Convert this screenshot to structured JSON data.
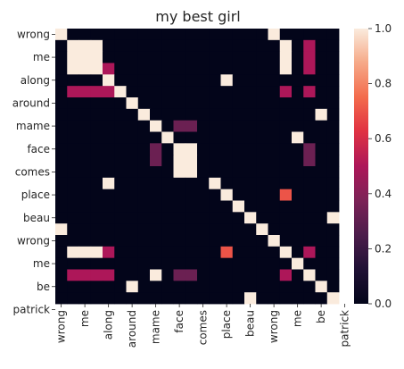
{
  "chart_data": {
    "type": "heatmap",
    "title": "my best girl",
    "xlabel": "",
    "ylabel": "",
    "labels": [
      "wrong",
      "me",
      "along",
      "around",
      "mame",
      "face",
      "comes",
      "place",
      "beau",
      "wrong",
      "me",
      "be",
      "patrick"
    ],
    "cell_labels": [
      "wrong",
      "me",
      "me",
      "me",
      "along",
      "along",
      "along",
      "along",
      "around",
      "mame",
      "mame",
      "face",
      "comes",
      "comes",
      "comes",
      "place",
      "beau",
      "wrong",
      "me",
      "me",
      "be",
      "be",
      "be",
      "patrick"
    ],
    "matrix": [
      [
        1,
        0,
        0,
        0,
        0,
        0,
        0,
        0,
        0,
        0,
        0,
        0,
        0,
        0,
        0,
        0,
        0,
        0,
        1,
        0,
        0,
        0,
        0,
        0
      ],
      [
        0,
        1,
        1,
        1,
        0,
        0,
        0,
        0,
        0,
        0,
        0,
        0,
        0,
        0,
        0,
        0,
        0,
        0,
        0,
        1,
        0,
        0.5,
        0,
        0
      ],
      [
        0,
        1,
        1,
        1,
        0,
        0,
        0,
        0,
        0,
        0,
        0,
        0,
        0,
        0,
        0,
        0,
        0,
        0,
        0,
        1,
        0,
        0.5,
        0,
        0
      ],
      [
        0,
        1,
        1,
        1,
        0.5,
        0,
        0,
        0,
        0,
        0,
        0,
        0,
        0,
        0,
        0,
        0,
        0,
        0,
        0,
        1,
        0,
        0.5,
        0,
        0
      ],
      [
        0,
        0,
        0,
        0,
        1,
        0,
        0,
        0,
        0,
        0,
        0,
        0,
        0,
        0,
        1,
        0,
        0,
        0,
        0,
        0,
        0,
        0,
        0,
        0
      ],
      [
        0,
        0.5,
        0.5,
        0.5,
        0.5,
        1,
        0,
        0,
        0,
        0,
        0,
        0,
        0,
        0,
        0,
        0,
        0,
        0,
        0,
        0.5,
        0,
        0.5,
        0,
        0
      ],
      [
        0,
        0,
        0,
        0,
        0,
        0,
        1,
        0,
        0,
        0,
        0,
        0,
        0,
        0,
        0,
        0,
        0,
        0,
        0,
        0,
        0,
        0,
        0,
        0
      ],
      [
        0,
        0,
        0,
        0,
        0,
        0,
        0,
        1,
        0,
        0,
        0,
        0,
        0,
        0,
        0,
        0,
        0,
        0,
        0,
        0,
        0,
        0,
        1,
        0
      ],
      [
        0,
        0,
        0,
        0,
        0,
        0,
        0,
        0,
        1,
        0,
        0.33,
        0.33,
        0,
        0,
        0,
        0,
        0,
        0,
        0,
        0,
        0,
        0,
        0,
        0
      ],
      [
        0,
        0,
        0,
        0,
        0,
        0,
        0,
        0,
        0,
        1,
        0,
        0,
        0,
        0,
        0,
        0,
        0,
        0,
        0,
        0,
        1,
        0,
        0,
        0
      ],
      [
        0,
        0,
        0,
        0,
        0,
        0,
        0,
        0,
        0.33,
        0,
        1,
        1,
        0,
        0,
        0,
        0,
        0,
        0,
        0,
        0,
        0,
        0.33,
        0,
        0
      ],
      [
        0,
        0,
        0,
        0,
        0,
        0,
        0,
        0,
        0.33,
        0,
        1,
        1,
        0,
        0,
        0,
        0,
        0,
        0,
        0,
        0,
        0,
        0.33,
        0,
        0
      ],
      [
        0,
        0,
        0,
        0,
        0,
        0,
        0,
        0,
        0,
        0,
        1,
        1,
        0,
        0,
        0,
        0,
        0,
        0,
        0,
        0,
        0,
        0,
        0,
        0
      ],
      [
        0,
        0,
        0,
        0,
        1,
        0,
        0,
        0,
        0,
        0,
        0,
        0,
        0,
        1,
        0,
        0,
        0,
        0,
        0,
        0,
        0,
        0,
        0,
        0
      ],
      [
        0,
        0,
        0,
        0,
        0,
        0,
        0,
        0,
        0,
        0,
        0,
        0,
        0,
        0,
        1,
        0,
        0,
        0,
        0,
        0,
        0,
        0,
        0,
        0
      ],
      [
        0,
        0,
        0,
        0,
        0,
        0,
        0,
        0,
        0,
        0,
        0,
        0,
        0,
        0,
        0,
        1,
        0,
        0,
        0,
        0,
        0,
        0,
        0,
        0
      ],
      [
        0,
        0,
        0,
        0,
        0,
        0,
        0,
        0,
        0,
        0,
        0,
        0,
        0,
        0,
        0,
        0,
        1,
        0,
        0,
        0,
        0,
        0,
        0,
        1
      ],
      [
        1,
        0,
        0,
        0,
        0,
        0,
        0,
        0,
        0,
        0,
        0,
        0,
        0,
        0,
        0,
        0,
        0,
        1,
        0,
        0,
        0,
        0,
        0,
        0
      ],
      [
        0,
        0,
        0,
        0,
        0,
        0,
        0,
        0,
        0,
        0,
        0,
        0,
        0,
        0,
        0,
        0,
        0,
        0,
        1,
        0,
        0,
        0,
        0,
        0
      ],
      [
        0,
        1,
        1,
        1,
        0.5,
        0,
        0,
        0,
        0,
        0,
        0,
        0,
        0,
        0,
        0,
        0,
        0,
        0,
        0,
        1,
        0,
        0.5,
        0,
        0
      ],
      [
        0,
        0,
        0,
        0,
        0,
        0,
        0,
        0,
        0,
        0,
        0,
        0,
        0,
        0,
        0,
        0,
        0,
        0,
        0,
        0,
        1,
        0,
        0,
        0
      ],
      [
        0,
        0.5,
        0.5,
        0.5,
        0.5,
        0,
        0,
        0,
        1,
        0,
        0.33,
        0.33,
        0,
        0,
        0,
        0,
        0,
        0,
        0,
        0.5,
        0,
        1,
        0,
        0
      ],
      [
        0,
        0,
        0,
        0,
        0,
        0,
        1,
        0,
        0,
        0,
        0,
        0,
        0,
        0,
        0,
        0,
        0,
        0,
        0,
        0,
        0,
        0,
        1,
        0
      ],
      [
        0,
        0,
        0,
        0,
        0,
        0,
        0,
        0,
        0,
        0,
        0,
        0,
        0,
        0,
        0,
        0,
        1,
        0,
        0,
        0,
        0,
        0,
        0,
        1
      ]
    ],
    "overrides": [
      {
        "row": 5,
        "col": 19,
        "value": 0.5
      },
      {
        "row": 14,
        "col": 19,
        "value": 0.7
      },
      {
        "row": 19,
        "col": 14,
        "value": 0.7
      }
    ],
    "colorbar": {
      "min": 0.0,
      "max": 1.0,
      "ticks": [
        "0.0",
        "0.2",
        "0.4",
        "0.6",
        "0.8",
        "1.0"
      ],
      "colormap": "rocket"
    },
    "grid": false,
    "legend": "colorbar-right"
  }
}
